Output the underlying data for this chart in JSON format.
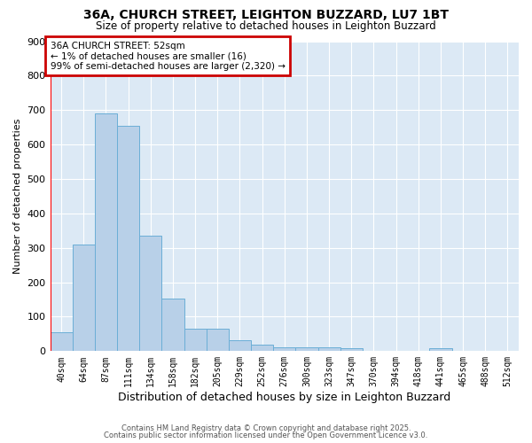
{
  "title1": "36A, CHURCH STREET, LEIGHTON BUZZARD, LU7 1BT",
  "title2": "Size of property relative to detached houses in Leighton Buzzard",
  "xlabel": "Distribution of detached houses by size in Leighton Buzzard",
  "ylabel": "Number of detached properties",
  "categories": [
    "40sqm",
    "64sqm",
    "87sqm",
    "111sqm",
    "134sqm",
    "158sqm",
    "182sqm",
    "205sqm",
    "229sqm",
    "252sqm",
    "276sqm",
    "300sqm",
    "323sqm",
    "347sqm",
    "370sqm",
    "394sqm",
    "418sqm",
    "441sqm",
    "465sqm",
    "488sqm",
    "512sqm"
  ],
  "values": [
    55,
    310,
    690,
    655,
    335,
    152,
    65,
    65,
    32,
    18,
    10,
    10,
    10,
    8,
    0,
    0,
    0,
    8,
    0,
    0,
    0
  ],
  "bar_color": "#b8d0e8",
  "bar_edge_color": "#6baed6",
  "background_color": "#dce9f5",
  "annotation_line1": "36A CHURCH STREET: 52sqm",
  "annotation_line2": "← 1% of detached houses are smaller (16)",
  "annotation_line3": "99% of semi-detached houses are larger (2,320) →",
  "annotation_box_color": "#ffffff",
  "annotation_box_edge": "#cc0000",
  "redline_x": -0.5,
  "ylim": [
    0,
    900
  ],
  "yticks": [
    0,
    100,
    200,
    300,
    400,
    500,
    600,
    700,
    800,
    900
  ],
  "footer1": "Contains HM Land Registry data © Crown copyright and database right 2025.",
  "footer2": "Contains public sector information licensed under the Open Government Licence v3.0."
}
